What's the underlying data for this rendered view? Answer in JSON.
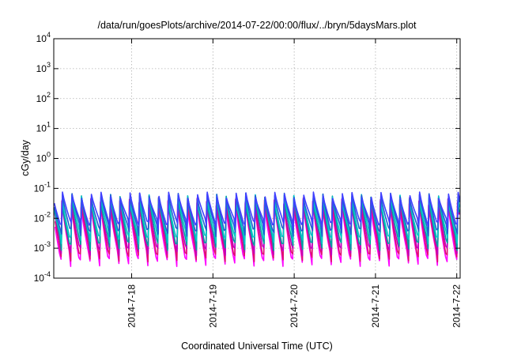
{
  "chart_data": {
    "type": "line",
    "title": "/data/run/goesPlots/archive/2014-07-22/00:00/flux/../bryn/5daysMars.plot",
    "xlabel": "Coordinated Universal Time (UTC)",
    "ylabel": "cGy/day",
    "y_scale": "log",
    "ylim": [
      0.0001,
      10000
    ],
    "xlim": [
      "2014-07-17 01:00",
      "2014-07-22 01:00"
    ],
    "x_ticks": [
      "2014-7-18",
      "2014-7-19",
      "2014-7-20",
      "2014-7-21",
      "2014-7-22"
    ],
    "y_ticks": [
      {
        "base": "10",
        "exp": "-4"
      },
      {
        "base": "10",
        "exp": "-3"
      },
      {
        "base": "10",
        "exp": "-2"
      },
      {
        "base": "10",
        "exp": "-1"
      },
      {
        "base": "10",
        "exp": "0"
      },
      {
        "base": "10",
        "exp": "1"
      },
      {
        "base": "10",
        "exp": "2"
      },
      {
        "base": "10",
        "exp": "3"
      },
      {
        "base": "10",
        "exp": "4"
      }
    ],
    "grid": true,
    "cycle_period_hours": 2.85,
    "series": [
      {
        "color": "#ff00ff",
        "peak": 0.03,
        "trough": 0.00035
      },
      {
        "color": "#e01070",
        "peak": 0.035,
        "trough": 0.0005
      },
      {
        "color": "#c000c0",
        "peak": 0.04,
        "trough": 0.0008
      },
      {
        "color": "#00a0a0",
        "peak": 0.045,
        "trough": 0.0012
      },
      {
        "color": "#00c8c8",
        "peak": 0.05,
        "trough": 0.002
      },
      {
        "color": "#2060d0",
        "peak": 0.055,
        "trough": 0.0035
      },
      {
        "color": "#4040ff",
        "peak": 0.06,
        "trough": 0.006
      }
    ]
  }
}
